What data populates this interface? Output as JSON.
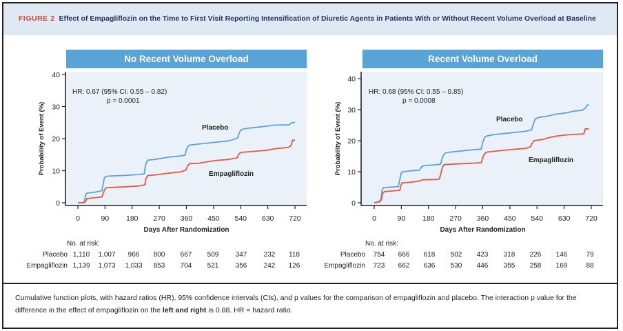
{
  "figure": {
    "label": "FIGURE 2",
    "title": "Effect of Empagliflozin on the Time to First Visit Reporting Intensification of Diuretic Agents in Patients With or Without Recent Volume Overload at Baseline",
    "caption_part1": "Cumulative function plots, with hazard ratios (HR), 95% confidence intervals (CIs), and p values for the comparison of empagliflozin and placebo. The interaction p value for the difference in the effect of empagliflozin on the ",
    "caption_bold": "left and right",
    "caption_part2": " is 0.88. HR = hazard ratio."
  },
  "colors": {
    "placebo": "#5aa3d6",
    "empagliflozin": "#e8573f",
    "header_bg": "#5aa3d6",
    "plot_bg": "#eaf1f9",
    "title_bg": "#dfe9f4",
    "figure_label": "#e0432f"
  },
  "chart_data": [
    {
      "type": "line",
      "title": "No Recent Volume Overload",
      "xlabel": "Days After Randomization",
      "ylabel": "Probability of Event (%)",
      "xlim": [
        0,
        720
      ],
      "ylim": [
        0,
        40
      ],
      "xticks": [
        0,
        90,
        180,
        270,
        360,
        450,
        540,
        630,
        720
      ],
      "yticks": [
        0,
        10,
        20,
        30,
        40
      ],
      "annotation_hr": "HR: 0.67 (95% CI: 0.55 – 0.82)",
      "annotation_p": "p = 0.0001",
      "series": [
        {
          "name": "Placebo",
          "label": "Placebo",
          "x": [
            0,
            18,
            22,
            26,
            30,
            50,
            70,
            80,
            84,
            88,
            92,
            100,
            150,
            200,
            220,
            224,
            228,
            234,
            260,
            300,
            340,
            355,
            360,
            365,
            372,
            400,
            450,
            500,
            530,
            536,
            542,
            560,
            600,
            650,
            700,
            710,
            720
          ],
          "values": [
            0,
            0,
            0.5,
            2.5,
            3.0,
            3.2,
            3.5,
            3.8,
            6.0,
            7.8,
            8.2,
            8.3,
            8.5,
            8.8,
            9.0,
            11.5,
            12.8,
            13.3,
            13.6,
            14.2,
            14.6,
            14.8,
            16.5,
            17.6,
            18.0,
            18.3,
            18.8,
            19.3,
            20.2,
            22.0,
            22.8,
            23.2,
            23.6,
            24.2,
            24.3,
            25.0,
            25.0
          ]
        },
        {
          "name": "Empagliflozin",
          "label": "Empagliflozin",
          "x": [
            0,
            20,
            26,
            30,
            50,
            80,
            86,
            90,
            95,
            120,
            160,
            200,
            222,
            226,
            232,
            260,
            300,
            340,
            358,
            364,
            370,
            400,
            430,
            460,
            500,
            528,
            534,
            540,
            580,
            620,
            660,
            700,
            708,
            712,
            720
          ],
          "values": [
            0,
            0,
            0.5,
            1.3,
            1.5,
            1.8,
            3.5,
            4.3,
            4.7,
            4.8,
            5.0,
            5.2,
            5.6,
            7.6,
            8.5,
            8.7,
            9.2,
            9.6,
            10.2,
            11.5,
            12.2,
            12.3,
            12.8,
            13.2,
            13.5,
            14.0,
            15.2,
            15.7,
            16.0,
            16.3,
            16.9,
            17.3,
            18.0,
            19.5,
            19.5
          ]
        }
      ],
      "risk_table": {
        "header": "No. at risk:",
        "rows": [
          {
            "label": "Placebo",
            "values": [
              "1,110",
              "1,007",
              "966",
              "800",
              "667",
              "509",
              "347",
              "232",
              "118"
            ]
          },
          {
            "label": "Empagliflozin",
            "values": [
              "1,139",
              "1,073",
              "1,033",
              "853",
              "704",
              "521",
              "356",
              "242",
              "126"
            ]
          }
        ]
      }
    },
    {
      "type": "line",
      "title": "Recent Volume Overload",
      "xlabel": "Days After Randomization",
      "ylabel": "Probability of Event (%)",
      "xlim": [
        0,
        720
      ],
      "ylim": [
        0,
        40
      ],
      "xticks": [
        0,
        90,
        180,
        270,
        360,
        450,
        540,
        630,
        720
      ],
      "yticks": [
        0,
        10,
        20,
        30,
        40
      ],
      "annotation_hr": "HR: 0.68 (95% CI: 0.55 – 0.85)",
      "annotation_p": "p = 0.0008",
      "series": [
        {
          "name": "Placebo",
          "label": "Placebo",
          "x": [
            0,
            15,
            22,
            26,
            30,
            50,
            80,
            86,
            90,
            96,
            120,
            150,
            156,
            165,
            200,
            220,
            226,
            232,
            240,
            280,
            320,
            355,
            360,
            366,
            372,
            400,
            450,
            500,
            522,
            528,
            534,
            545,
            580,
            600,
            640,
            660,
            690,
            700,
            706,
            712
          ],
          "values": [
            0,
            0.3,
            1.0,
            4.0,
            4.8,
            5.0,
            5.2,
            8.0,
            9.7,
            10.0,
            10.3,
            10.5,
            11.5,
            12.0,
            12.2,
            12.4,
            14.5,
            15.7,
            16.2,
            16.6,
            17.0,
            17.3,
            19.5,
            21.0,
            21.5,
            22.0,
            22.5,
            23.0,
            23.5,
            25.5,
            27.0,
            27.5,
            28.0,
            28.5,
            29.0,
            29.5,
            29.8,
            30.5,
            31.5,
            31.5
          ]
        },
        {
          "name": "Empagliflozin",
          "label": "Empagliflozin",
          "x": [
            0,
            18,
            24,
            28,
            34,
            60,
            85,
            88,
            92,
            120,
            150,
            160,
            200,
            215,
            220,
            226,
            232,
            270,
            320,
            355,
            360,
            366,
            372,
            420,
            460,
            500,
            518,
            524,
            530,
            560,
            580,
            600,
            630,
            660,
            695,
            700,
            712
          ],
          "values": [
            0,
            0.3,
            1.0,
            3.0,
            3.6,
            3.8,
            4.0,
            5.5,
            6.4,
            6.6,
            7.0,
            7.4,
            7.5,
            7.6,
            9.0,
            11.5,
            12.3,
            12.5,
            12.7,
            12.9,
            14.5,
            15.8,
            16.3,
            16.8,
            17.2,
            17.5,
            18.0,
            19.2,
            20.0,
            20.4,
            21.0,
            21.4,
            21.8,
            22.0,
            22.2,
            23.8,
            23.8
          ]
        }
      ],
      "risk_table": {
        "header": "No. at risk:",
        "rows": [
          {
            "label": "Placebo",
            "values": [
              "754",
              "666",
              "618",
              "502",
              "423",
              "318",
              "226",
              "146",
              "79"
            ]
          },
          {
            "label": "Empagliflozin",
            "values": [
              "723",
              "662",
              "636",
              "530",
              "446",
              "355",
              "258",
              "169",
              "88"
            ]
          }
        ]
      }
    }
  ]
}
